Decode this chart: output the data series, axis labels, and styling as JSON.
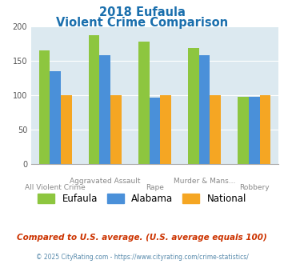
{
  "title_line1": "2018 Eufaula",
  "title_line2": "Violent Crime Comparison",
  "category_line1": [
    "",
    "Aggravated Assault",
    "",
    "Murder & Mans...",
    ""
  ],
  "category_line2": [
    "All Violent Crime",
    "",
    "Rape",
    "",
    "Robbery"
  ],
  "eufaula": [
    165,
    187,
    178,
    168,
    98
  ],
  "alabama": [
    135,
    158,
    96,
    158,
    97
  ],
  "national": [
    100,
    100,
    100,
    100,
    100
  ],
  "colors": {
    "eufaula": "#8dc63f",
    "alabama": "#4a90d9",
    "national": "#f5a623"
  },
  "ylim": [
    0,
    200
  ],
  "yticks": [
    0,
    50,
    100,
    150,
    200
  ],
  "bg_color": "#dce9f0",
  "title_color": "#1a6fad",
  "footer_text": "Compared to U.S. average. (U.S. average equals 100)",
  "copyright_text": "© 2025 CityRating.com - https://www.cityrating.com/crime-statistics/",
  "legend_labels": [
    "Eufaula",
    "Alabama",
    "National"
  ]
}
